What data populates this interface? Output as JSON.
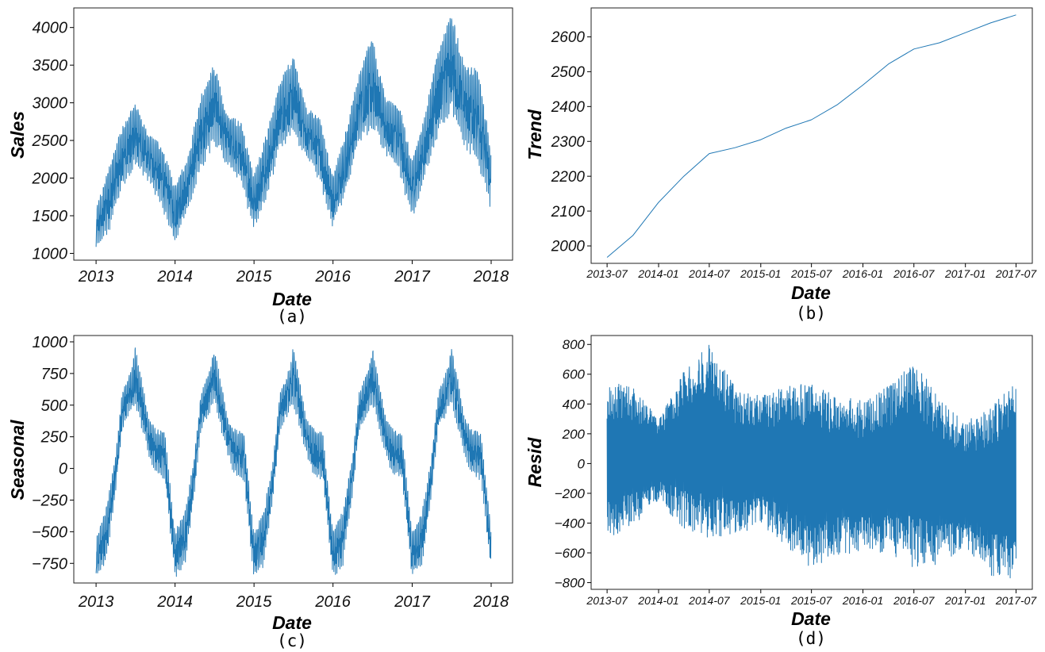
{
  "colors": {
    "series": "#1f77b4",
    "frame": "#222222",
    "background": "#ffffff"
  },
  "chart_data": [
    {
      "id": "a",
      "type": "line",
      "caption": "(a)",
      "xlabel": "Date",
      "ylabel": "Sales",
      "x_axis": "date",
      "xlim": [
        "2012-09-20",
        "2018-04-10"
      ],
      "ylim": [
        910,
        4260
      ],
      "xticks": [
        "2013-01-01",
        "2014-01-01",
        "2015-01-01",
        "2016-01-01",
        "2017-01-01",
        "2018-01-01"
      ],
      "xtick_labels": [
        "2013",
        "2014",
        "2015",
        "2016",
        "2017",
        "2018"
      ],
      "yticks": [
        1000,
        1500,
        2000,
        2500,
        3000,
        3500,
        4000
      ],
      "ytick_labels": [
        "1000",
        "1500",
        "2000",
        "2500",
        "3000",
        "3500",
        "4000"
      ],
      "grid": false,
      "series": [
        {
          "envelope": [
            [
              "2013-01-01",
              1030,
              1600
            ],
            [
              "2013-03-01",
              1280,
              2150
            ],
            [
              "2013-05-01",
              1850,
              2700
            ],
            [
              "2013-07-01",
              2150,
              3010
            ],
            [
              "2013-09-01",
              1950,
              2600
            ],
            [
              "2013-11-01",
              1600,
              2450
            ],
            [
              "2013-12-31",
              1150,
              1900
            ],
            [
              "2014-03-01",
              1550,
              2300
            ],
            [
              "2014-05-01",
              2100,
              3100
            ],
            [
              "2014-07-01",
              2450,
              3540
            ],
            [
              "2014-09-01",
              2150,
              2850
            ],
            [
              "2014-11-01",
              1900,
              2750
            ],
            [
              "2014-12-31",
              1310,
              2050
            ],
            [
              "2015-03-01",
              1750,
              2600
            ],
            [
              "2015-05-01",
              2350,
              3300
            ],
            [
              "2015-07-01",
              2550,
              3640
            ],
            [
              "2015-09-01",
              2250,
              2950
            ],
            [
              "2015-11-01",
              1950,
              2800
            ],
            [
              "2015-12-31",
              1310,
              2050
            ],
            [
              "2016-03-01",
              1800,
              2650
            ],
            [
              "2016-05-01",
              2450,
              3400
            ],
            [
              "2016-07-01",
              2650,
              3910
            ],
            [
              "2016-09-01",
              2300,
              3050
            ],
            [
              "2016-11-01",
              2050,
              3000
            ],
            [
              "2016-12-31",
              1440,
              2250
            ],
            [
              "2017-03-01",
              2000,
              2850
            ],
            [
              "2017-05-01",
              2550,
              3700
            ],
            [
              "2017-07-01",
              2850,
              4200
            ],
            [
              "2017-09-01",
              2400,
              3500
            ],
            [
              "2017-11-01",
              2200,
              3450
            ],
            [
              "2017-12-31",
              1530,
              2400
            ]
          ]
        }
      ]
    },
    {
      "id": "b",
      "type": "line",
      "caption": "(b)",
      "xlabel": "Date",
      "ylabel": "Trend",
      "x_axis": "date",
      "xlim": [
        "2013-05-05",
        "2017-08-28"
      ],
      "ylim": [
        1950,
        2683
      ],
      "xticks": [
        "2013-07-01",
        "2014-01-01",
        "2014-07-01",
        "2015-01-01",
        "2015-07-01",
        "2016-01-01",
        "2016-07-01",
        "2017-01-01",
        "2017-07-01"
      ],
      "xtick_labels": [
        "2013-07",
        "2014-01",
        "2014-07",
        "2015-01",
        "2015-07",
        "2016-01",
        "2016-07",
        "2017-01",
        "2017-07"
      ],
      "yticks": [
        2000,
        2100,
        2200,
        2300,
        2400,
        2500,
        2600
      ],
      "ytick_labels": [
        "2000",
        "2100",
        "2200",
        "2300",
        "2400",
        "2500",
        "2600"
      ],
      "grid": false,
      "series": [
        {
          "points": [
            [
              "2013-07-01",
              1967
            ],
            [
              "2013-10-01",
              2030
            ],
            [
              "2014-01-01",
              2125
            ],
            [
              "2014-04-01",
              2200
            ],
            [
              "2014-07-01",
              2265
            ],
            [
              "2014-10-01",
              2282
            ],
            [
              "2015-01-01",
              2305
            ],
            [
              "2015-04-01",
              2338
            ],
            [
              "2015-07-01",
              2362
            ],
            [
              "2015-10-01",
              2405
            ],
            [
              "2016-01-01",
              2462
            ],
            [
              "2016-04-01",
              2522
            ],
            [
              "2016-07-01",
              2565
            ],
            [
              "2016-10-01",
              2583
            ],
            [
              "2017-01-01",
              2612
            ],
            [
              "2017-04-01",
              2640
            ],
            [
              "2017-07-01",
              2663
            ]
          ]
        }
      ]
    },
    {
      "id": "c",
      "type": "line",
      "caption": "(c)",
      "xlabel": "Date",
      "ylabel": "Seasonal",
      "x_axis": "date",
      "xlim": [
        "2012-09-20",
        "2018-04-10"
      ],
      "ylim": [
        -905,
        1050
      ],
      "xticks": [
        "2013-01-01",
        "2014-01-01",
        "2015-01-01",
        "2016-01-01",
        "2017-01-01",
        "2018-01-01"
      ],
      "xtick_labels": [
        "2013",
        "2014",
        "2015",
        "2016",
        "2017",
        "2018"
      ],
      "yticks": [
        -750,
        -500,
        -250,
        0,
        250,
        500,
        750,
        1000
      ],
      "ytick_labels": [
        "−750",
        "−500",
        "−250",
        "0",
        "250",
        "500",
        "750",
        "1000"
      ],
      "grid": false,
      "series": [
        {
          "envelope": [
            [
              "2013-01-01",
              -870,
              -530
            ],
            [
              "2013-02-15",
              -780,
              -330
            ],
            [
              "2013-04-01",
              -200,
              100
            ],
            [
              "2013-05-01",
              300,
              600
            ],
            [
              "2013-06-15",
              450,
              800
            ],
            [
              "2013-07-01",
              500,
              960
            ],
            [
              "2013-08-01",
              300,
              700
            ],
            [
              "2013-09-01",
              100,
              400
            ],
            [
              "2013-10-01",
              -50,
              320
            ],
            [
              "2013-11-15",
              -100,
              280
            ],
            [
              "2013-12-31",
              -870,
              -500
            ],
            [
              "2014-02-15",
              -780,
              -330
            ],
            [
              "2014-04-01",
              -200,
              100
            ],
            [
              "2014-05-01",
              300,
              600
            ],
            [
              "2014-06-15",
              450,
              800
            ],
            [
              "2014-07-01",
              500,
              960
            ],
            [
              "2014-08-01",
              300,
              700
            ],
            [
              "2014-09-01",
              100,
              400
            ],
            [
              "2014-10-01",
              -50,
              320
            ],
            [
              "2014-11-15",
              -100,
              280
            ],
            [
              "2014-12-31",
              -870,
              -500
            ],
            [
              "2015-02-15",
              -780,
              -330
            ],
            [
              "2015-04-01",
              -200,
              100
            ],
            [
              "2015-05-01",
              300,
              600
            ],
            [
              "2015-06-15",
              450,
              800
            ],
            [
              "2015-07-01",
              500,
              960
            ],
            [
              "2015-08-01",
              300,
              700
            ],
            [
              "2015-09-01",
              100,
              400
            ],
            [
              "2015-10-01",
              -50,
              320
            ],
            [
              "2015-11-15",
              -100,
              280
            ],
            [
              "2015-12-31",
              -870,
              -500
            ],
            [
              "2016-02-15",
              -780,
              -330
            ],
            [
              "2016-04-01",
              -200,
              100
            ],
            [
              "2016-05-01",
              300,
              600
            ],
            [
              "2016-06-15",
              450,
              800
            ],
            [
              "2016-07-01",
              500,
              960
            ],
            [
              "2016-08-01",
              300,
              700
            ],
            [
              "2016-09-01",
              100,
              400
            ],
            [
              "2016-10-01",
              -50,
              320
            ],
            [
              "2016-11-15",
              -100,
              280
            ],
            [
              "2016-12-31",
              -870,
              -500
            ],
            [
              "2017-02-15",
              -780,
              -330
            ],
            [
              "2017-04-01",
              -200,
              100
            ],
            [
              "2017-05-01",
              300,
              600
            ],
            [
              "2017-06-15",
              450,
              800
            ],
            [
              "2017-07-01",
              500,
              960
            ],
            [
              "2017-08-01",
              300,
              700
            ],
            [
              "2017-09-01",
              100,
              400
            ],
            [
              "2017-10-01",
              -50,
              320
            ],
            [
              "2017-11-15",
              -100,
              280
            ],
            [
              "2017-12-31",
              -800,
              -470
            ]
          ]
        }
      ]
    },
    {
      "id": "d",
      "type": "line",
      "caption": "(d)",
      "xlabel": "Date",
      "ylabel": "Resid",
      "x_axis": "date",
      "xlim": [
        "2013-05-05",
        "2017-08-28"
      ],
      "ylim": [
        -845,
        860
      ],
      "xticks": [
        "2013-07-01",
        "2014-01-01",
        "2014-07-01",
        "2015-01-01",
        "2015-07-01",
        "2016-01-01",
        "2016-07-01",
        "2017-01-01",
        "2017-07-01"
      ],
      "xtick_labels": [
        "2013-07",
        "2014-01",
        "2014-07",
        "2015-01",
        "2015-07",
        "2016-01",
        "2016-07",
        "2017-01",
        "2017-07"
      ],
      "yticks": [
        -800,
        -600,
        -400,
        -200,
        0,
        200,
        400,
        600,
        800
      ],
      "ytick_labels": [
        "−800",
        "−600",
        "−400",
        "−200",
        "0",
        "200",
        "400",
        "600",
        "800"
      ],
      "grid": false,
      "series": [
        {
          "envelope": [
            [
              "2013-07-01",
              -520,
              550
            ],
            [
              "2013-10-01",
              -420,
              520
            ],
            [
              "2014-01-01",
              -250,
              300
            ],
            [
              "2014-04-01",
              -440,
              620
            ],
            [
              "2014-07-01",
              -500,
              800
            ],
            [
              "2014-10-01",
              -480,
              520
            ],
            [
              "2015-01-01",
              -420,
              450
            ],
            [
              "2015-04-01",
              -550,
              520
            ],
            [
              "2015-07-01",
              -710,
              540
            ],
            [
              "2015-10-01",
              -620,
              460
            ],
            [
              "2016-01-01",
              -600,
              420
            ],
            [
              "2016-04-01",
              -620,
              520
            ],
            [
              "2016-07-01",
              -700,
              690
            ],
            [
              "2016-10-01",
              -680,
              440
            ],
            [
              "2017-01-01",
              -560,
              280
            ],
            [
              "2017-04-01",
              -760,
              380
            ],
            [
              "2017-07-01",
              -790,
              550
            ]
          ]
        }
      ]
    }
  ]
}
